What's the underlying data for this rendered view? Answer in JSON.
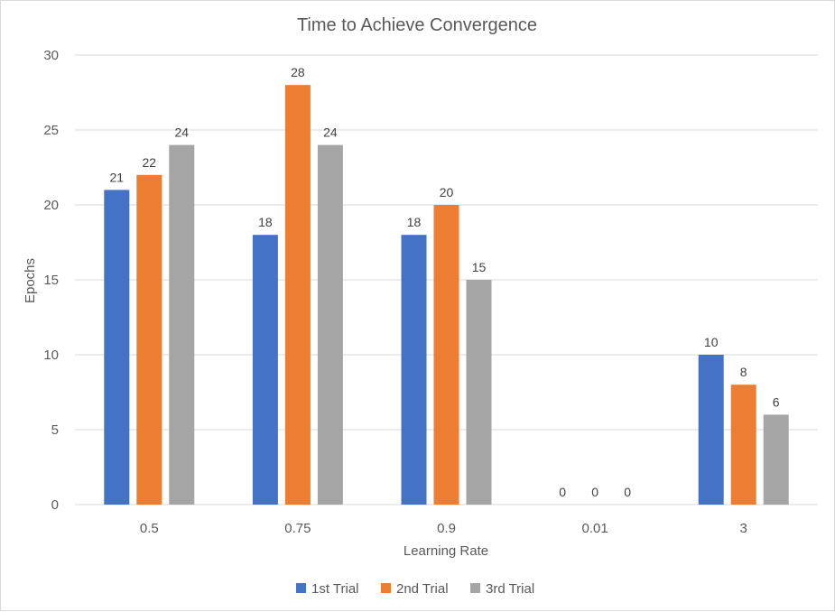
{
  "chart_data": {
    "type": "bar",
    "title": "Time to Achieve Convergence",
    "xlabel": "Learning Rate",
    "ylabel": "Epochs",
    "categories": [
      "0.5",
      "0.75",
      "0.9",
      "0.01",
      "3"
    ],
    "series": [
      {
        "name": "1st Trial",
        "values": [
          21,
          18,
          18,
          0,
          10
        ],
        "color": "#4472c4"
      },
      {
        "name": "2nd Trial",
        "values": [
          22,
          28,
          20,
          0,
          8
        ],
        "color": "#ed7d31"
      },
      {
        "name": "3rd Trial",
        "values": [
          24,
          24,
          15,
          0,
          6
        ],
        "color": "#a5a5a5"
      }
    ],
    "ylim": [
      0,
      30
    ],
    "yticks": [
      0,
      5,
      10,
      15,
      20,
      25,
      30
    ],
    "grid": true,
    "legend": "bottom",
    "data_labels": true
  }
}
